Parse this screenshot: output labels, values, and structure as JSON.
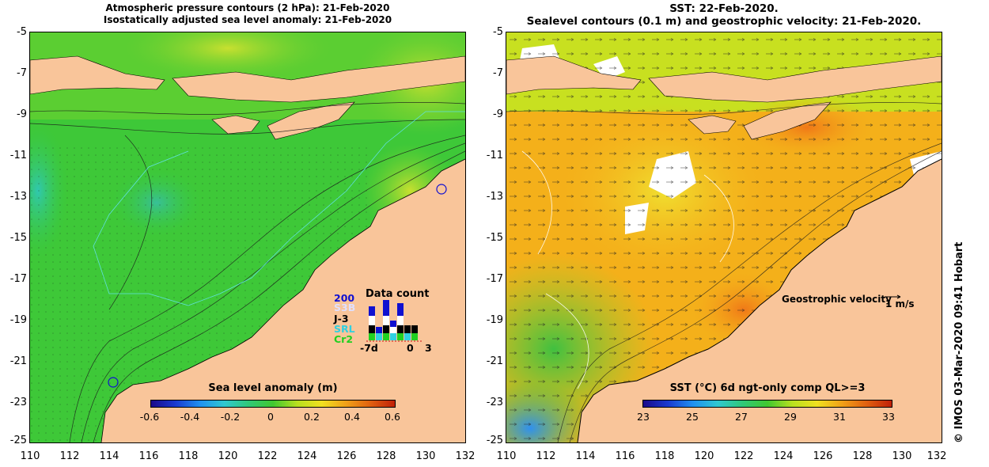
{
  "left_panel": {
    "title_line1": "Atmospheric pressure contours (2 hPa): 21-Feb-2020",
    "title_line2": "Isostatically adjusted sea level anomaly: 21-Feb-2020",
    "colorbar_title": "Sea level anomaly (m)",
    "colorbar_ticks": [
      "-0.6",
      "-0.4",
      "-0.2",
      "0",
      "0.2",
      "0.4",
      "0.6"
    ],
    "colors": {
      "ocean_dominant": "#38c838",
      "land": "#f9c59a",
      "anomaly_high": "#c8e030",
      "anomaly_low": "#30c8a0"
    }
  },
  "right_panel": {
    "title_line1": "SST: 22-Feb-2020.",
    "title_line2": "Sealevel contours (0.1 m) and geostrophic velocity: 21-Feb-2020.",
    "colorbar_title": "SST (°C) 6d ngt-only comp QL>=3",
    "colorbar_ticks": [
      "23",
      "25",
      "27",
      "29",
      "31",
      "33"
    ],
    "geostrophic_label": "Geostrophic velocity",
    "geostrophic_unit": "1 m/s",
    "colors": {
      "ocean_dominant": "#f4b01a",
      "land": "#f9c59a",
      "cloud": "#ffffff"
    }
  },
  "axes": {
    "y_ticks": [
      "-5",
      "-7",
      "-9",
      "-11",
      "-13",
      "-15",
      "-17",
      "-19",
      "-21",
      "-23",
      "-25"
    ],
    "x_ticks": [
      "110",
      "112",
      "114",
      "116",
      "118",
      "120",
      "122",
      "124",
      "126",
      "128",
      "130",
      "132"
    ]
  },
  "data_count": {
    "title": "Data count",
    "satellites": [
      "200",
      "S3B",
      "J-3",
      "SRL",
      "Cr2"
    ],
    "satellite_colors": [
      "#1010d0",
      "#e0e0ff",
      "#000000",
      "#30d0e0",
      "#20d020"
    ],
    "axis_ticks": [
      "-7d",
      "0",
      "3"
    ]
  },
  "credit": "© IMOS 03-Mar-2020 09:41 Hobart"
}
